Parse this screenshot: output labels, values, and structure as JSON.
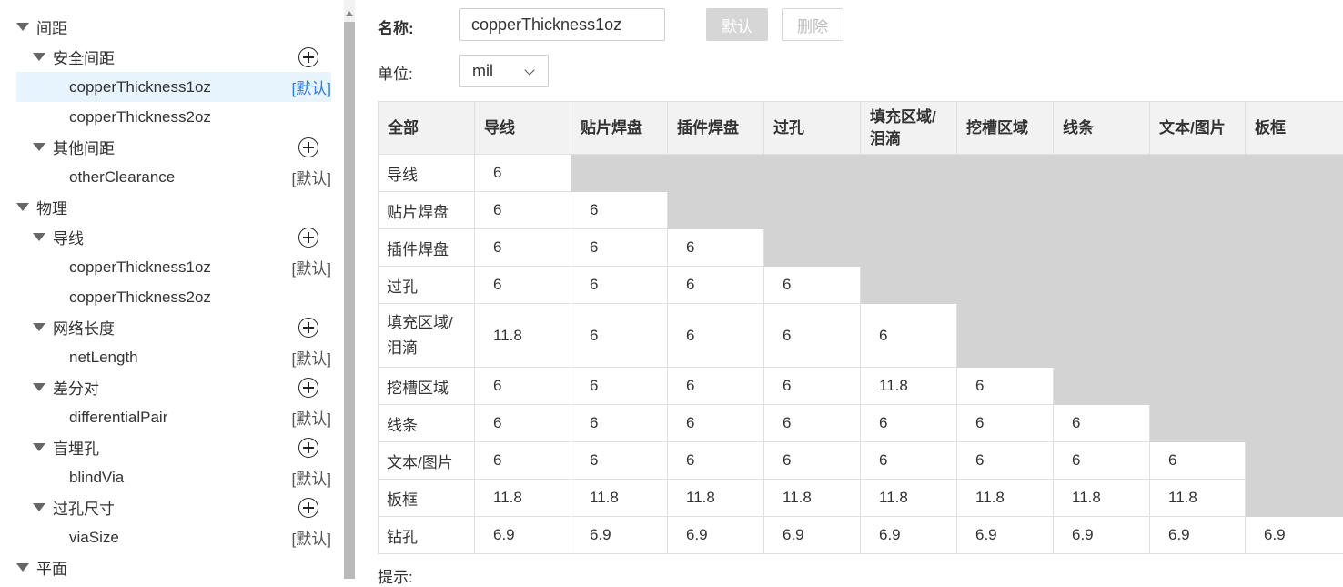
{
  "tree": [
    {
      "level": 0,
      "label": "间距",
      "caret": true
    },
    {
      "level": 1,
      "label": "安全间距",
      "caret": true,
      "add": true
    },
    {
      "level": 2,
      "label": "copperThickness1oz",
      "tag": "[默认]",
      "selected": true
    },
    {
      "level": 2,
      "label": "copperThickness2oz"
    },
    {
      "level": 1,
      "label": "其他间距",
      "caret": true,
      "add": true
    },
    {
      "level": 2,
      "label": "otherClearance",
      "tag": "[默认]"
    },
    {
      "level": 0,
      "label": "物理",
      "caret": true
    },
    {
      "level": 1,
      "label": "导线",
      "caret": true,
      "add": true
    },
    {
      "level": 2,
      "label": "copperThickness1oz",
      "tag": "[默认]"
    },
    {
      "level": 2,
      "label": "copperThickness2oz"
    },
    {
      "level": 1,
      "label": "网络长度",
      "caret": true,
      "add": true
    },
    {
      "level": 2,
      "label": "netLength",
      "tag": "[默认]"
    },
    {
      "level": 1,
      "label": "差分对",
      "caret": true,
      "add": true
    },
    {
      "level": 2,
      "label": "differentialPair",
      "tag": "[默认]"
    },
    {
      "level": 1,
      "label": "盲埋孔",
      "caret": true,
      "add": true
    },
    {
      "level": 2,
      "label": "blindVia",
      "tag": "[默认]"
    },
    {
      "level": 1,
      "label": "过孔尺寸",
      "caret": true,
      "add": true
    },
    {
      "level": 2,
      "label": "viaSize",
      "tag": "[默认]"
    },
    {
      "level": 0,
      "label": "平面",
      "caret": true
    }
  ],
  "form": {
    "name_label": "名称:",
    "name_value": "copperThickness1oz",
    "default_button": "默认",
    "delete_button": "删除",
    "unit_label": "单位:",
    "unit_value": "mil"
  },
  "table": {
    "corner": "全部",
    "columns": [
      "导线",
      "贴片焊盘",
      "插件焊盘",
      "过孔",
      "填充区域/\n泪滴",
      "挖槽区域",
      "线条",
      "文本/图片",
      "板框"
    ],
    "rows": [
      {
        "label": "导线",
        "values": [
          "6"
        ]
      },
      {
        "label": "贴片焊盘",
        "values": [
          "6",
          "6"
        ]
      },
      {
        "label": "插件焊盘",
        "values": [
          "6",
          "6",
          "6"
        ]
      },
      {
        "label": "过孔",
        "values": [
          "6",
          "6",
          "6",
          "6"
        ]
      },
      {
        "label": "填充区域/\n泪滴",
        "values": [
          "11.8",
          "6",
          "6",
          "6",
          "6"
        ]
      },
      {
        "label": "挖槽区域",
        "values": [
          "6",
          "6",
          "6",
          "6",
          "11.8",
          "6"
        ]
      },
      {
        "label": "线条",
        "values": [
          "6",
          "6",
          "6",
          "6",
          "6",
          "6",
          "6"
        ]
      },
      {
        "label": "文本/图片",
        "values": [
          "6",
          "6",
          "6",
          "6",
          "6",
          "6",
          "6",
          "6"
        ]
      },
      {
        "label": "板框",
        "values": [
          "11.8",
          "11.8",
          "11.8",
          "11.8",
          "11.8",
          "11.8",
          "11.8",
          "11.8"
        ]
      },
      {
        "label": "钻孔",
        "values": [
          "6.9",
          "6.9",
          "6.9",
          "6.9",
          "6.9",
          "6.9",
          "6.9",
          "6.9",
          "6.9"
        ]
      }
    ]
  },
  "hint": "提示:"
}
